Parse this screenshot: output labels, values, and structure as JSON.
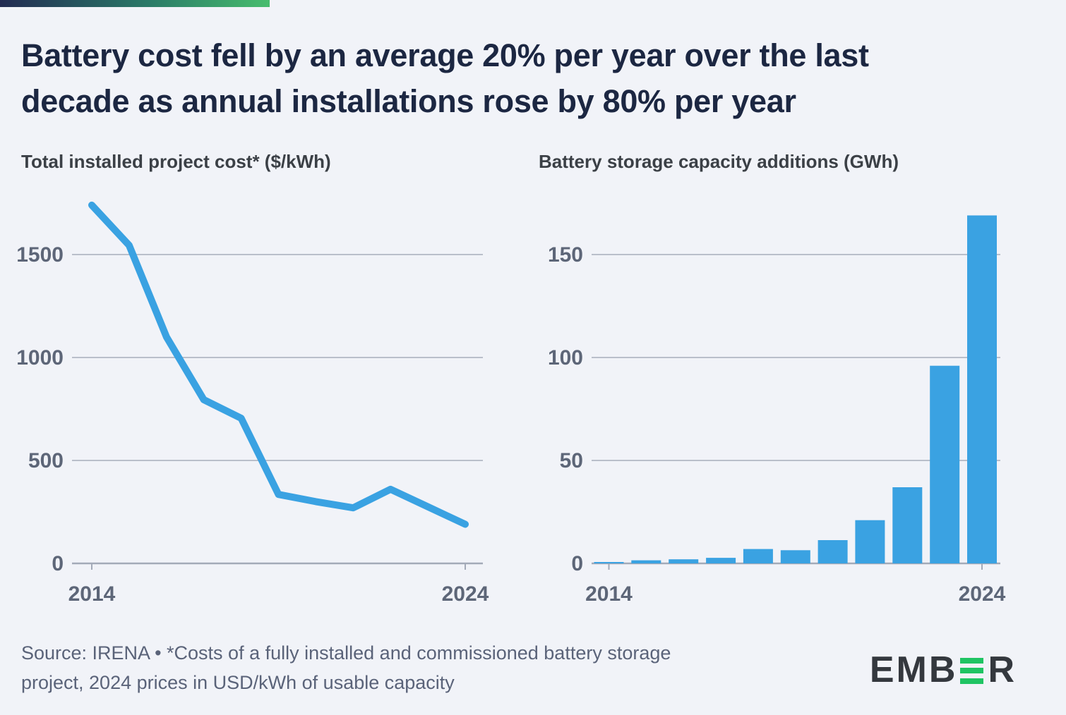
{
  "page_background": "#f1f3f8",
  "topbar": {
    "gradient_from": "#222b52",
    "gradient_mid": "#2a7a68",
    "gradient_to": "#47bd6e"
  },
  "title": {
    "line1": "Battery cost fell by an average 20% per year over the last",
    "line2": "decade as annual installations rose by 80% per year"
  },
  "colors": {
    "accent_blue": "#3aa2e2",
    "gridline": "#b9bfca",
    "axis": "#a3aab8",
    "tick_label": "#5d6678",
    "title_navy": "#1c2742",
    "logo_green": "#1fc463",
    "logo_dark": "#34383e"
  },
  "chart_data": [
    {
      "type": "line",
      "title": "Total installed project cost* ($/kWh)",
      "x": [
        2014,
        2015,
        2016,
        2017,
        2018,
        2019,
        2020,
        2021,
        2022,
        2023,
        2024
      ],
      "values": [
        1740,
        1545,
        1100,
        795,
        705,
        335,
        300,
        270,
        360,
        275,
        190
      ],
      "xlabel": "",
      "ylabel": "$/kWh",
      "x_tick_labels": [
        "2014",
        "2024"
      ],
      "yticks": [
        0,
        500,
        1000,
        1500
      ],
      "ytick_step": 500,
      "ylim": [
        0,
        1750
      ],
      "grid": true,
      "legend_position": "none",
      "series_color": "#3aa2e2"
    },
    {
      "type": "bar",
      "title": "Battery storage capacity additions (GWh)",
      "x": [
        2014,
        2015,
        2016,
        2017,
        2018,
        2019,
        2020,
        2021,
        2022,
        2023,
        2024
      ],
      "values": [
        0.7,
        1.5,
        2,
        2.7,
        7,
        6.4,
        11.3,
        21,
        37,
        96,
        169
      ],
      "xlabel": "",
      "ylabel": "GWh",
      "x_tick_labels": [
        "2014",
        "2024"
      ],
      "yticks": [
        0,
        50,
        100,
        150
      ],
      "ytick_step": 50,
      "ylim": [
        0,
        175
      ],
      "grid": true,
      "legend_position": "none",
      "series_color": "#3aa2e2"
    }
  ],
  "footer": {
    "line1": "Source: IRENA • *Costs of a fully installed and commissioned battery storage",
    "line2": "project, 2024 prices in USD/kWh of usable capacity"
  },
  "logo": {
    "prefix": "EMB",
    "suffix": "R",
    "green_e_icon": "three-bar-E"
  }
}
